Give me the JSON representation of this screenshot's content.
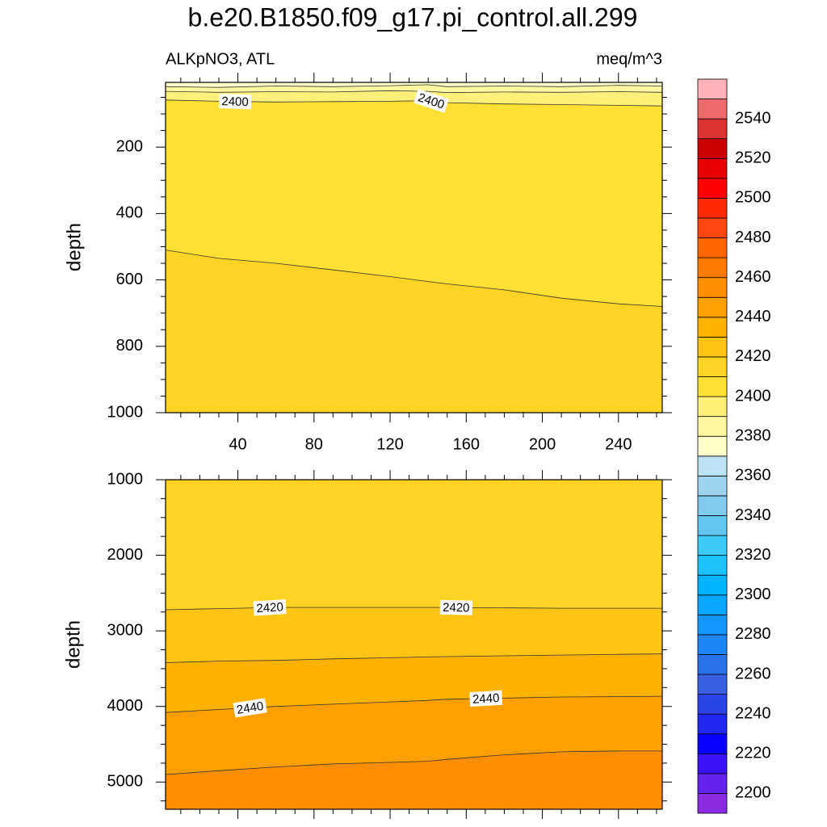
{
  "chart_data": [
    {
      "type": "contour",
      "title": "b.e20.B1850.f09_g17.pi_control.all.299",
      "subtitle_left": "ALKpNO3, ATL",
      "subtitle_right": "meq/m^3",
      "ylabel": "depth",
      "xlim": [
        2,
        263
      ],
      "xticks": [
        40,
        80,
        120,
        160,
        200,
        240
      ],
      "xticklabels": true,
      "ylim": [
        5,
        1000
      ],
      "yticks": [
        200,
        400,
        600,
        800,
        1000
      ],
      "yreverse": true,
      "contours": [
        {
          "level": 2380,
          "x": [
            2,
            30,
            60,
            90,
            120,
            140,
            150,
            180,
            210,
            240,
            263
          ],
          "y": [
            18,
            20,
            16,
            18,
            15,
            12,
            18,
            16,
            18,
            14,
            16
          ]
        },
        {
          "level": 2390,
          "x": [
            2,
            30,
            60,
            90,
            120,
            140,
            150,
            180,
            210,
            240,
            263
          ],
          "y": [
            32,
            35,
            33,
            34,
            30,
            32,
            36,
            34,
            35,
            33,
            35
          ]
        },
        {
          "level": 2400,
          "x": [
            2,
            30,
            60,
            90,
            120,
            140,
            150,
            180,
            210,
            240,
            263
          ],
          "y": [
            58,
            62,
            64,
            63,
            62,
            60,
            66,
            70,
            72,
            74,
            76
          ]
        },
        {
          "level": 2410,
          "x": [
            2,
            30,
            60,
            90,
            120,
            140,
            150,
            180,
            210,
            240,
            263
          ],
          "y": [
            510,
            535,
            550,
            570,
            590,
            605,
            612,
            630,
            655,
            672,
            680
          ]
        }
      ],
      "colorbar": {
        "levels": [
          2200,
          2210,
          2220,
          2230,
          2240,
          2250,
          2260,
          2270,
          2280,
          2290,
          2300,
          2310,
          2320,
          2330,
          2340,
          2350,
          2360,
          2370,
          2380,
          2390,
          2400,
          2410,
          2420,
          2430,
          2440,
          2450,
          2460,
          2470,
          2480,
          2490,
          2500,
          2510,
          2520,
          2530,
          2540,
          2550
        ],
        "colors": [
          "#8a2be2",
          "#6622ee",
          "#3a12f5",
          "#0a00ff",
          "#1e28f0",
          "#2a44e6",
          "#3860e0",
          "#2a72ea",
          "#1f86f5",
          "#1496ff",
          "#0aa6ff",
          "#00b4ff",
          "#1cc2fc",
          "#3ccaf6",
          "#60c6f0",
          "#80cbee",
          "#9ed4ef",
          "#bce3f3",
          "#ffffcc",
          "#fff7a0",
          "#fff07a",
          "#ffe033",
          "#ffd324",
          "#ffc414",
          "#ffb300",
          "#ffa000",
          "#ff8f00",
          "#ff7b00",
          "#ff6600",
          "#ff4810",
          "#ff2a00",
          "#ff0000",
          "#e80000",
          "#cc0000",
          "#dd3333",
          "#ee6b6b",
          "#ffb3b8"
        ],
        "ticks": [
          2200,
          2220,
          2240,
          2260,
          2280,
          2300,
          2320,
          2340,
          2360,
          2380,
          2400,
          2420,
          2440,
          2460,
          2480,
          2500,
          2520,
          2540
        ]
      }
    },
    {
      "type": "contour",
      "ylabel": "depth",
      "xlim": [
        2,
        263
      ],
      "xticks": [
        40,
        80,
        120,
        160,
        200,
        240
      ],
      "xticklabels": false,
      "ylim": [
        1000,
        5360
      ],
      "yticks": [
        1000,
        2000,
        3000,
        4000,
        5000
      ],
      "yreverse": true,
      "contours": [
        {
          "level": 2420,
          "x": [
            2,
            30,
            60,
            90,
            120,
            140,
            150,
            180,
            210,
            240,
            263
          ],
          "y": [
            2720,
            2705,
            2690,
            2690,
            2690,
            2690,
            2690,
            2695,
            2700,
            2700,
            2700
          ]
        },
        {
          "level": 2430,
          "x": [
            2,
            30,
            60,
            90,
            120,
            140,
            150,
            180,
            210,
            240,
            263
          ],
          "y": [
            3420,
            3400,
            3390,
            3370,
            3355,
            3345,
            3340,
            3330,
            3320,
            3310,
            3305
          ]
        },
        {
          "level": 2440,
          "x": [
            2,
            30,
            60,
            90,
            120,
            140,
            150,
            180,
            210,
            240,
            263
          ],
          "y": [
            4080,
            4040,
            4000,
            3970,
            3940,
            3920,
            3905,
            3890,
            3875,
            3870,
            3865
          ]
        },
        {
          "level": 2450,
          "x": [
            2,
            30,
            60,
            90,
            120,
            140,
            150,
            180,
            210,
            240,
            263
          ],
          "y": [
            4900,
            4850,
            4800,
            4760,
            4740,
            4725,
            4700,
            4640,
            4600,
            4590,
            4590
          ]
        }
      ]
    }
  ]
}
